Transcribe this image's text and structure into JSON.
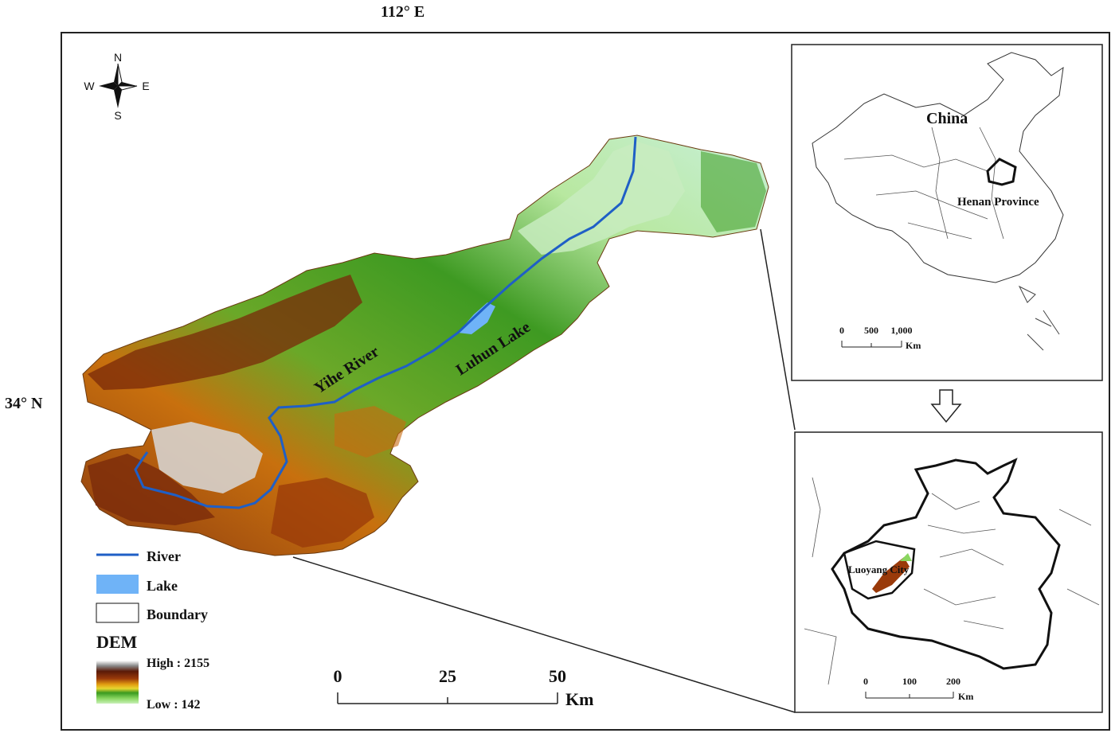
{
  "coords": {
    "top": "112° E",
    "left": "34° N"
  },
  "compass": {
    "n": "N",
    "s": "S",
    "e": "E",
    "w": "W"
  },
  "labels": {
    "river": "Yihe River",
    "lake": "Luhun Lake"
  },
  "legend": {
    "river": "River",
    "lake": "Lake",
    "boundary": "Boundary",
    "dem_title": "DEM",
    "dem_high": "High : 2155",
    "dem_low": "Low : 142",
    "colors": {
      "river": "#1f5fc6",
      "lake": "#6fb3f7"
    }
  },
  "scale_main": {
    "t0": "0",
    "t1": "25",
    "t2": "50",
    "unit": "Km"
  },
  "inset_china": {
    "country": "China",
    "province": "Henan Province",
    "t0": "0",
    "t1": "500",
    "t2": "1,000",
    "unit": "Km"
  },
  "inset_henan": {
    "city": "Luoyang City",
    "t0": "0",
    "t1": "100",
    "t2": "200",
    "unit": "Km"
  },
  "dem_colors": [
    "#ffffff",
    "#8a8a8a",
    "#5a1a08",
    "#9a3a0a",
    "#e09a10",
    "#e8d630",
    "#3a9a20",
    "#8ad660",
    "#c8f0b8"
  ]
}
